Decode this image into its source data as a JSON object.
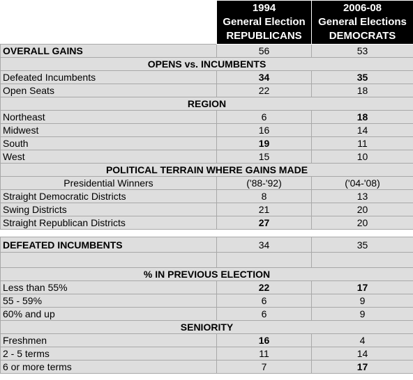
{
  "header": {
    "columns": [
      {
        "year": "1994",
        "line2": "General Election",
        "line3": "REPUBLICANS"
      },
      {
        "year": "2006-08",
        "line2": "General Elections",
        "line3": "DEMOCRATS"
      }
    ]
  },
  "table": {
    "rows": [
      {
        "label": "OVERALL GAINS",
        "cells": [
          56,
          53
        ]
      },
      {
        "title": "OPENS vs. INCUMBENTS"
      },
      {
        "label": "Defeated Incumbents",
        "cells": [
          34,
          35
        ]
      },
      {
        "label": "Open Seats",
        "cells": [
          22,
          18
        ]
      },
      {
        "title": "REGION"
      },
      {
        "label": "Northeast",
        "cells": [
          6,
          18
        ]
      },
      {
        "label": "Midwest",
        "cells": [
          16,
          14
        ]
      },
      {
        "label": "South",
        "cells": [
          19,
          11
        ]
      },
      {
        "label": "West",
        "cells": [
          15,
          10
        ]
      },
      {
        "title": "POLITICAL TERRAIN WHERE GAINS MADE"
      },
      {
        "label": "Presidential Winners",
        "cells": [
          "('88-'92)",
          "('04-'08)"
        ]
      },
      {
        "label": "Straight Democratic Districts",
        "cells": [
          8,
          13
        ]
      },
      {
        "label": "Swing Districts",
        "cells": [
          21,
          20
        ]
      },
      {
        "label": "Straight Republican Districts",
        "cells": [
          27,
          20
        ]
      },
      {
        "label": "DEFEATED INCUMBENTS",
        "cells": [
          34,
          35
        ]
      },
      {
        "title": "% IN PREVIOUS ELECTION"
      },
      {
        "label": "Less than 55%",
        "cells": [
          22,
          17
        ]
      },
      {
        "label": "55 - 59%",
        "cells": [
          6,
          9
        ]
      },
      {
        "label": "60% and up",
        "cells": [
          6,
          9
        ]
      },
      {
        "title": "SENIORITY"
      },
      {
        "label": "Freshmen",
        "cells": [
          16,
          4
        ]
      },
      {
        "label": "2 - 5 terms",
        "cells": [
          11,
          14
        ]
      },
      {
        "label": "6 or more terms",
        "cells": [
          7,
          17
        ]
      }
    ]
  }
}
